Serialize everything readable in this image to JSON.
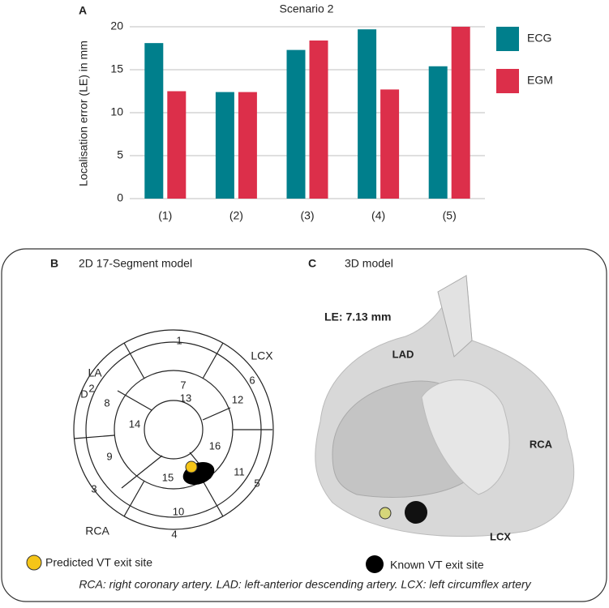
{
  "chart_data": {
    "type": "bar",
    "panel": "A",
    "title": "Scenario 2",
    "y_label": "Localisation error (LE) in mm",
    "categories": [
      "(1)",
      "(2)",
      "(3)",
      "(4)",
      "(5)"
    ],
    "series": [
      {
        "name": "ECG",
        "color": "#007f8c",
        "values": [
          18.1,
          12.4,
          17.3,
          19.7,
          15.4
        ]
      },
      {
        "name": "EGM",
        "color": "#dc2f4a",
        "values": [
          12.5,
          12.4,
          18.4,
          12.7,
          20.0
        ]
      }
    ],
    "ylim": [
      0,
      20
    ],
    "yticks": [
      0,
      5,
      10,
      15,
      20
    ],
    "grid": true
  },
  "panel_b": {
    "label": "B",
    "title": "2D 17-Segment model",
    "segments": [
      "1",
      "2",
      "3",
      "4",
      "5",
      "6",
      "7",
      "8",
      "9",
      "10",
      "11",
      "12",
      "13",
      "14",
      "15",
      "16"
    ],
    "markers": [
      "LA",
      "D",
      "LCX",
      "RCA"
    ]
  },
  "panel_c": {
    "label": "C",
    "title": "3D model",
    "error": "LE: 7.13 mm",
    "arteries": [
      "LAD",
      "RCA",
      "LCX"
    ]
  },
  "legend": {
    "predicted": "Predicted VT exit site",
    "known": "Known VT exit site"
  },
  "caption": "RCA: right coronary artery. LAD: left-anterior descending artery. LCX: left circumflex artery"
}
